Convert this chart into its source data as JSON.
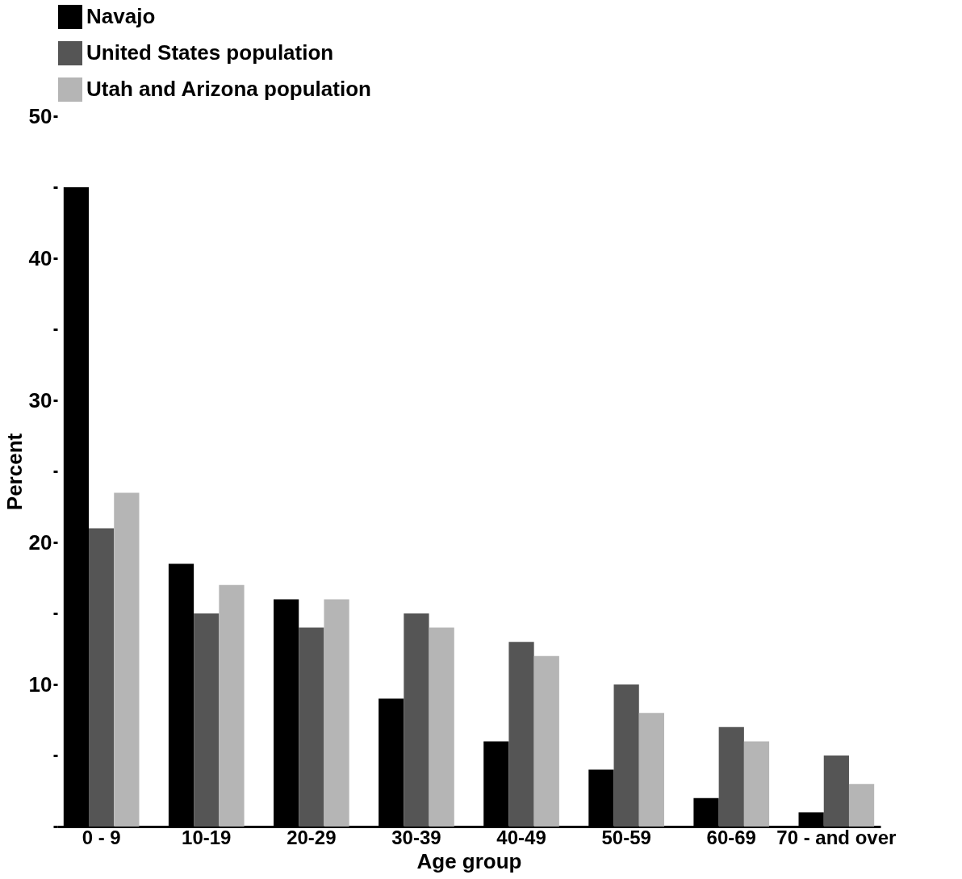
{
  "chart_data": {
    "type": "bar",
    "xlabel": "Age group",
    "ylabel": "Percent",
    "categories": [
      "0 - 9",
      "10-19",
      "20-29",
      "30-39",
      "40-49",
      "50-59",
      "60-69",
      "70 - and over"
    ],
    "series": [
      {
        "name": "Navajo",
        "color": "#000000",
        "values": [
          45,
          18.5,
          16,
          9,
          6,
          4,
          2,
          1
        ]
      },
      {
        "name": "United States population",
        "color": "#555555",
        "values": [
          21,
          15,
          14,
          15,
          13,
          10,
          7,
          5
        ]
      },
      {
        "name": "Utah and Arizona population",
        "color": "#b5b5b5",
        "values": [
          23.5,
          17,
          16,
          14,
          12,
          8,
          6,
          3
        ]
      }
    ],
    "ylim": [
      0,
      50
    ],
    "yticks": [
      {
        "value": 0,
        "label": null
      },
      {
        "value": 5,
        "label": null
      },
      10,
      {
        "value": 15,
        "label": null
      },
      20,
      {
        "value": 25,
        "label": null
      },
      30,
      {
        "value": 35,
        "label": null
      },
      40,
      {
        "value": 45,
        "label": null
      },
      50
    ],
    "legend": "top",
    "grid": false
  }
}
